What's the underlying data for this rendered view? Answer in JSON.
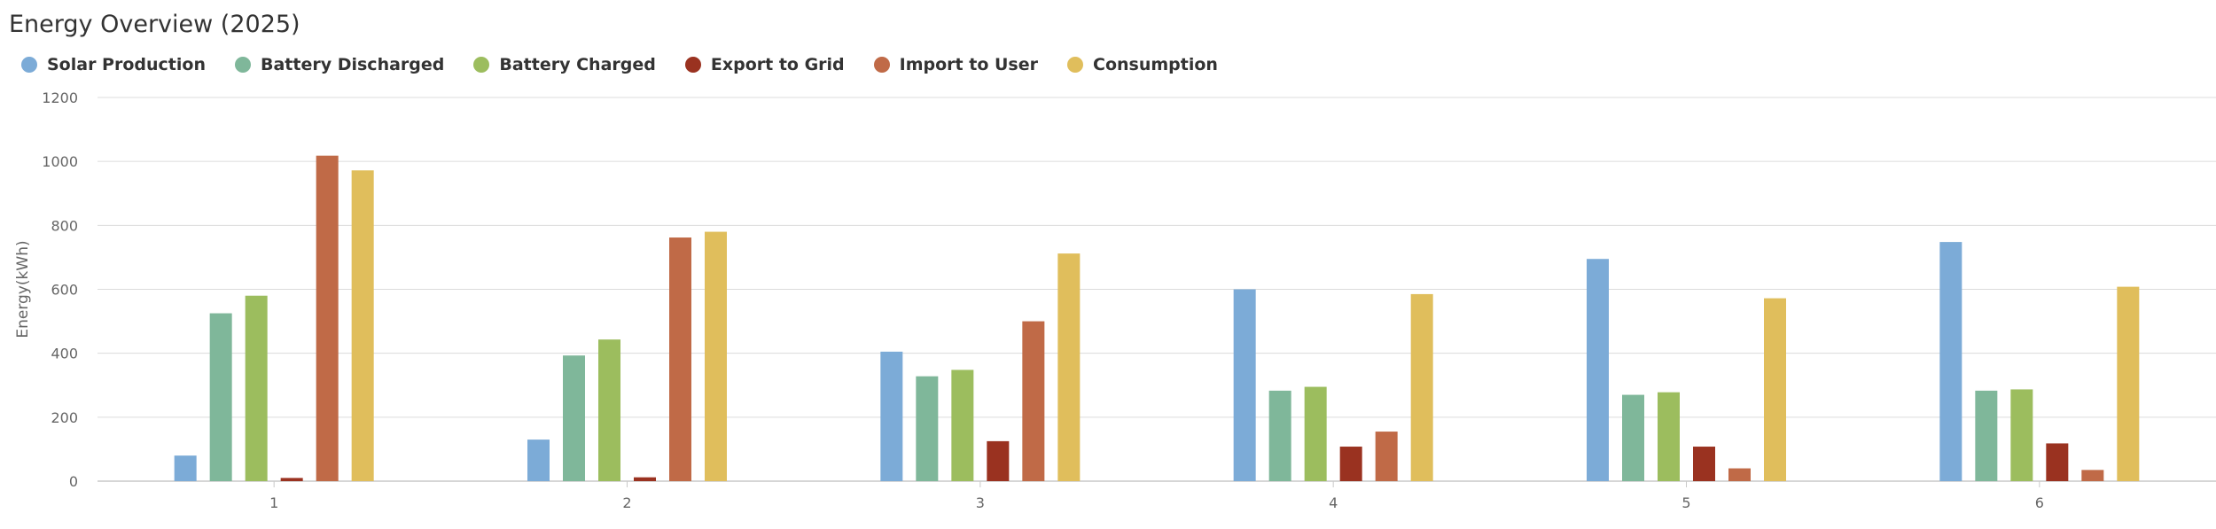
{
  "chart_data": {
    "type": "bar",
    "title": "Energy Overview (2025)",
    "xlabel": "",
    "ylabel": "Energy(kWh)",
    "ylim": [
      0,
      1200
    ],
    "yticks": [
      "0",
      "200",
      "400",
      "600",
      "800",
      "1000",
      "1200"
    ],
    "grid": true,
    "legend_position": "top-left",
    "categories": [
      "1",
      "2",
      "3",
      "4",
      "5",
      "6"
    ],
    "series": [
      {
        "name": "Solar Production",
        "color": "#7cabd7",
        "values": [
          80,
          130,
          405,
          600,
          695,
          748
        ]
      },
      {
        "name": "Battery Discharged",
        "color": "#7fb79a",
        "values": [
          525,
          393,
          328,
          283,
          270,
          283
        ]
      },
      {
        "name": "Battery Charged",
        "color": "#9cbd5e",
        "values": [
          580,
          443,
          348,
          295,
          278,
          287
        ]
      },
      {
        "name": "Export to Grid",
        "color": "#9a3220",
        "values": [
          10,
          12,
          125,
          108,
          108,
          118
        ]
      },
      {
        "name": "Import to User",
        "color": "#c06a47",
        "values": [
          1018,
          762,
          500,
          155,
          40,
          35
        ]
      },
      {
        "name": "Consumption",
        "color": "#e0be5c",
        "values": [
          972,
          780,
          712,
          585,
          572,
          608
        ]
      }
    ]
  }
}
